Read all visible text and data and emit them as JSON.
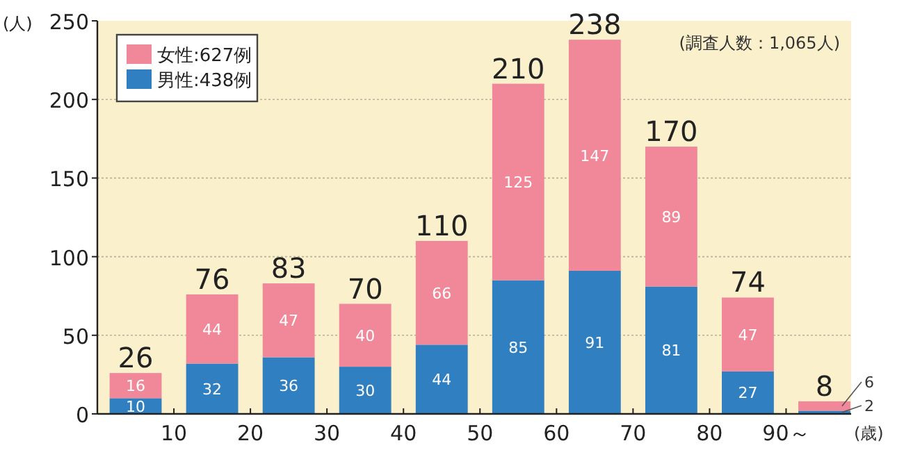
{
  "chart_data": {
    "type": "bar",
    "stacked": true,
    "ylabel": "(人)",
    "xlabel": "(歳)",
    "annotations": [
      "(調査人数：1,065人)"
    ],
    "x": [
      5,
      15,
      25,
      35,
      45,
      55,
      65,
      75,
      85,
      95
    ],
    "xlim": [
      0,
      98.5
    ],
    "xticks": [
      10,
      20,
      30,
      40,
      50,
      60,
      70,
      80,
      {
        "value": 90,
        "label": "90～"
      }
    ],
    "ylim": [
      0,
      250
    ],
    "yticks": [
      0,
      50,
      100,
      150,
      200,
      250
    ],
    "series": [
      {
        "name": "男性:438例",
        "color": "#2f7fc1",
        "values": [
          10,
          32,
          36,
          30,
          44,
          85,
          91,
          81,
          27,
          2
        ]
      },
      {
        "name": "女性:627例",
        "color": "#f0889a",
        "values": [
          16,
          44,
          47,
          40,
          66,
          125,
          147,
          89,
          47,
          6
        ]
      }
    ],
    "totals": [
      "26",
      "76",
      "83",
      "70",
      "110",
      "210",
      "238",
      "170",
      "74",
      "8"
    ],
    "data_labels": true,
    "grid": "y",
    "legend": "top left"
  }
}
